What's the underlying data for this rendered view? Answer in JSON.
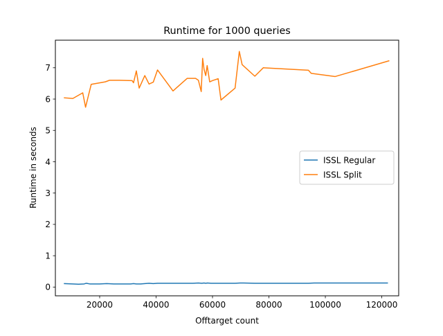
{
  "chart_data": {
    "type": "line",
    "title": "Runtime for 1000 queries",
    "xlabel": "Offtarget count",
    "ylabel": "Runtime in seconds",
    "xlim": [
      4300,
      126000
    ],
    "ylim": [
      -0.28,
      7.88
    ],
    "xticks": [
      20000,
      40000,
      60000,
      80000,
      100000,
      120000
    ],
    "xtick_labels": [
      "20000",
      "40000",
      "60000",
      "80000",
      "100000",
      "120000"
    ],
    "yticks": [
      0,
      1,
      2,
      3,
      4,
      5,
      6,
      7
    ],
    "ytick_labels": [
      "0",
      "1",
      "2",
      "3",
      "4",
      "5",
      "6",
      "7"
    ],
    "grid": false,
    "legend_position": "center-right",
    "series": [
      {
        "name": "ISSL Regular",
        "color": "#1f77b4",
        "x": [
          7500,
          10500,
          12500,
          14500,
          15200,
          16500,
          18000,
          20000,
          22500,
          25000,
          28000,
          31000,
          32000,
          33000,
          34500,
          36000,
          37500,
          39000,
          40500,
          43000,
          46000,
          50000,
          53000,
          55000,
          56200,
          57000,
          57600,
          58200,
          59500,
          61000,
          63000,
          66000,
          68000,
          69800,
          71000,
          75000,
          78000,
          85000,
          94000,
          96000,
          100000,
          104000,
          110000,
          116000,
          122000
        ],
        "y": [
          0.11,
          0.1,
          0.09,
          0.1,
          0.12,
          0.1,
          0.1,
          0.1,
          0.11,
          0.1,
          0.1,
          0.1,
          0.11,
          0.1,
          0.1,
          0.11,
          0.12,
          0.11,
          0.12,
          0.12,
          0.12,
          0.12,
          0.12,
          0.13,
          0.12,
          0.13,
          0.12,
          0.13,
          0.12,
          0.12,
          0.12,
          0.12,
          0.12,
          0.13,
          0.13,
          0.12,
          0.12,
          0.12,
          0.12,
          0.13,
          0.13,
          0.13,
          0.13,
          0.13,
          0.13
        ]
      },
      {
        "name": "ISSL Split",
        "color": "#ff7f0e",
        "x": [
          7500,
          10500,
          14000,
          15000,
          17000,
          22000,
          23500,
          27000,
          31500,
          32000,
          33000,
          34000,
          36000,
          37500,
          39000,
          40500,
          46000,
          51000,
          54000,
          55000,
          56000,
          56500,
          57000,
          57600,
          58100,
          59000,
          60000,
          62000,
          63000,
          68000,
          69500,
          70500,
          75000,
          78000,
          94000,
          95000,
          103500,
          122500
        ],
        "y": [
          6.04,
          6.02,
          6.2,
          5.74,
          6.47,
          6.55,
          6.6,
          6.6,
          6.59,
          6.52,
          6.9,
          6.35,
          6.75,
          6.48,
          6.54,
          6.93,
          6.26,
          6.66,
          6.66,
          6.6,
          6.24,
          7.3,
          6.95,
          6.75,
          7.07,
          6.55,
          6.59,
          6.65,
          5.97,
          6.35,
          7.52,
          7.1,
          6.73,
          7.0,
          6.92,
          6.82,
          6.72,
          7.22
        ]
      }
    ]
  }
}
